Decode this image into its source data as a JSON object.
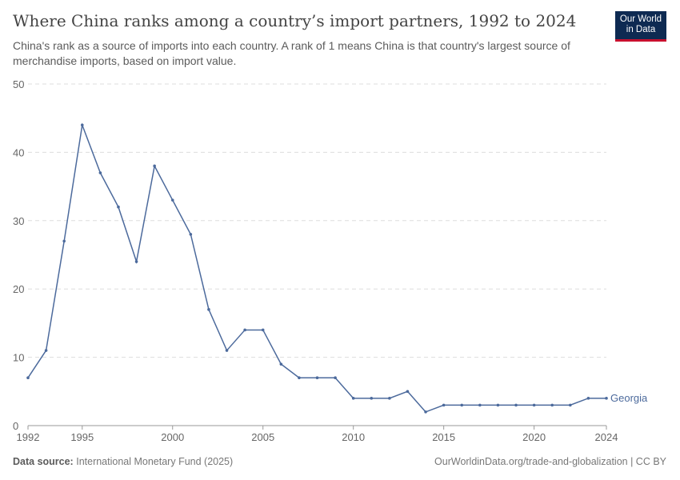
{
  "header": {
    "title": "Where China ranks among a country’s import partners, 1992 to 2024",
    "subtitle": "China's rank as a source of imports into each country. A rank of 1 means China is that country's largest source of merchandise imports, based on import value.",
    "logo": "Our World in Data"
  },
  "footer": {
    "source_label": "Data source:",
    "source": "International Monetary Fund (2025)",
    "right": "OurWorldinData.org/trade-and-globalization | CC BY"
  },
  "chart_data": {
    "type": "line",
    "title": "Where China ranks among a country’s import partners, 1992 to 2024",
    "ylim": [
      0,
      50
    ],
    "yticks": [
      0,
      10,
      20,
      30,
      40,
      50
    ],
    "xticks": [
      1992,
      1995,
      2000,
      2005,
      2010,
      2015,
      2020,
      2024
    ],
    "grid": true,
    "color": "#4c6a9c",
    "x": [
      1992,
      1993,
      1994,
      1995,
      1996,
      1997,
      1998,
      1999,
      2000,
      2001,
      2002,
      2003,
      2004,
      2005,
      2006,
      2007,
      2008,
      2009,
      2010,
      2011,
      2012,
      2013,
      2014,
      2015,
      2016,
      2017,
      2018,
      2019,
      2020,
      2021,
      2022,
      2023,
      2024
    ],
    "series": [
      {
        "name": "Georgia",
        "values": [
          7,
          11,
          27,
          44,
          37,
          32,
          24,
          38,
          33,
          28,
          17,
          11,
          14,
          14,
          9,
          7,
          7,
          7,
          4,
          4,
          4,
          5,
          2,
          3,
          3,
          3,
          3,
          3,
          3,
          3,
          3,
          4,
          4
        ]
      }
    ]
  }
}
